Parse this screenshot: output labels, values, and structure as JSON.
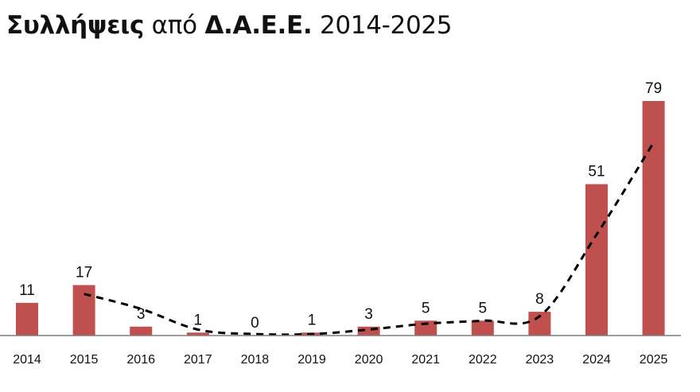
{
  "title": {
    "part1": "Συλλήψεις",
    "part2": "από",
    "part3": "Δ.Α.Ε.Ε.",
    "part4": "2014-2025"
  },
  "colors": {
    "bar": "#c0504d",
    "trend": "#000000",
    "axis": "#7f7f7f"
  },
  "chart_data": {
    "type": "bar",
    "categories": [
      "2014",
      "2015",
      "2016",
      "2017",
      "2018",
      "2019",
      "2020",
      "2021",
      "2022",
      "2023",
      "2024",
      "2025"
    ],
    "values": [
      11,
      17,
      3,
      1,
      0,
      1,
      3,
      5,
      5,
      8,
      51,
      79
    ],
    "trendline": {
      "style": "dashed",
      "x": [
        "2015",
        "2016",
        "2017",
        "2018",
        "2019",
        "2020",
        "2021",
        "2022",
        "2023",
        "2024",
        "2025"
      ],
      "values": [
        14,
        9,
        2,
        0.5,
        0.5,
        2,
        4,
        5,
        6.5,
        34,
        65
      ]
    },
    "data_labels": true,
    "ylim": [
      0,
      79
    ],
    "grid": false
  }
}
